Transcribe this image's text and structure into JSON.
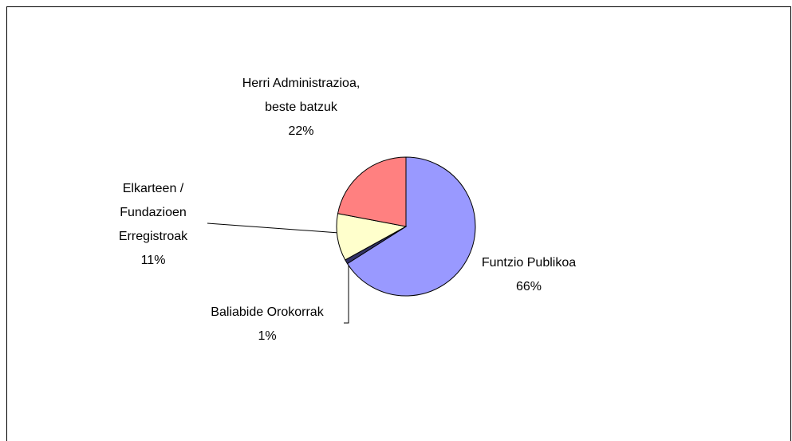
{
  "chart_data": {
    "type": "pie",
    "categories": [
      "Funtzio Publikoa",
      "Baliabide Orokorrak",
      "Elkarteen / Fundazioen Erregistroak",
      "Herri Administrazioa, beste batzuk"
    ],
    "values": [
      66,
      1,
      11,
      22
    ],
    "value_labels": [
      "66%",
      "1%",
      "11%",
      "22%"
    ],
    "colors": [
      "#9999ff",
      "#333366",
      "#ffffcc",
      "#ff8080"
    ]
  }
}
